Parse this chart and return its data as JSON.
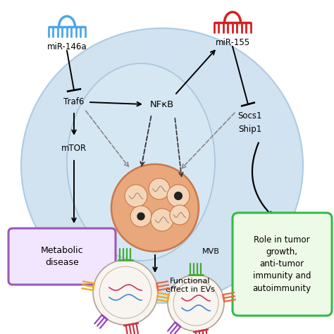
{
  "bg_color": "#ffffff",
  "cell_color": "#ccdff0",
  "cell2_color": "#d8e8f5",
  "mir146a_color": "#4da6e8",
  "mir155_color": "#d42020",
  "mvb_color": "#e8a87c",
  "mvb_edge": "#c8784a",
  "metabolic_fill": "#f2e6ff",
  "metabolic_edge": "#9b59b6",
  "tumor_fill": "#eefae8",
  "tumor_edge": "#33bb44",
  "labels": {
    "mir146a": "miR-146a",
    "mir155": "miR-155",
    "traf6": "Traf6",
    "nfkb": "NFκB",
    "mtor": "mTOR",
    "socs1": "Socs1",
    "ship1": "Ship1",
    "mvb": "MVB",
    "metabolic": "Metabolic\ndisease",
    "functional_evs": "Functional\neffect in EVs",
    "tumor": "Role in tumor\ngrowth,\nanti-tumor\nimmunity and\nautoimmunity"
  },
  "font_size": 8.5
}
